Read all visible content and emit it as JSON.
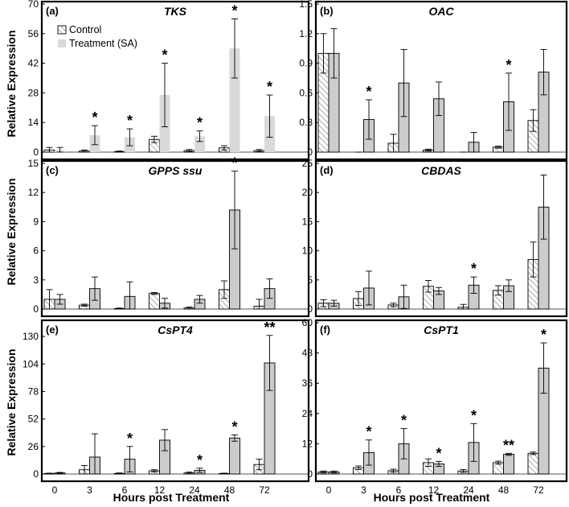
{
  "figure": {
    "ylabel": "Relative Expression",
    "xlabel": "Hours post Treatment",
    "legend": [
      "Control",
      "Treatment (SA)"
    ],
    "colors": {
      "control_hatch": "#b0b0b0",
      "treatment_fill": "#cccccc",
      "treatment_fill_a": "#d9d9d9"
    }
  },
  "chart_data": [
    {
      "type": "bar",
      "label": "(a)",
      "title": "TKS",
      "categories": [
        "0",
        "3",
        "6",
        "12",
        "24",
        "48",
        "72"
      ],
      "ylim": [
        0,
        70
      ],
      "yticks": [
        0,
        14,
        28,
        42,
        56,
        70
      ],
      "series": [
        {
          "name": "Control",
          "values": [
            1,
            0.5,
            0.2,
            6,
            0.7,
            2,
            0.7
          ],
          "errors": [
            1.2,
            0.5,
            0.3,
            1.5,
            0.5,
            1,
            0.5
          ]
        },
        {
          "name": "Treatment (SA)",
          "values": [
            1,
            8,
            7,
            27,
            7.5,
            49,
            17
          ],
          "errors": [
            1.2,
            4.5,
            4,
            15,
            2.5,
            14,
            10
          ]
        }
      ],
      "annotations": [
        "",
        "*",
        "*",
        "*",
        "*",
        "*",
        "*"
      ],
      "legend_position": "top-left"
    },
    {
      "type": "bar",
      "label": "(b)",
      "title": "OAC",
      "categories": [
        "0",
        "3",
        "6",
        "12",
        "24",
        "48",
        "72"
      ],
      "ylim": [
        0,
        1.5
      ],
      "yticks": [
        0,
        0.3,
        0.6,
        0.9,
        1.2,
        1.5
      ],
      "series": [
        {
          "name": "Control",
          "values": [
            1.0,
            0.0,
            0.09,
            0.02,
            0.0,
            0.05,
            0.32
          ],
          "errors": [
            0.2,
            0,
            0.09,
            0.01,
            0,
            0.01,
            0.11
          ]
        },
        {
          "name": "Treatment (SA)",
          "values": [
            1.0,
            0.33,
            0.7,
            0.54,
            0.1,
            0.51,
            0.81
          ],
          "errors": [
            0.25,
            0.2,
            0.34,
            0.17,
            0.1,
            0.29,
            0.23
          ]
        }
      ],
      "annotations": [
        "",
        "*",
        "",
        "",
        "",
        "*",
        ""
      ]
    },
    {
      "type": "bar",
      "label": "(c)",
      "title": "GPPS ssu",
      "categories": [
        "0",
        "3",
        "6",
        "12",
        "24",
        "48",
        "72"
      ],
      "ylim": [
        0,
        15
      ],
      "yticks": [
        0,
        3,
        6,
        9,
        12,
        15
      ],
      "series": [
        {
          "name": "Control",
          "values": [
            1.0,
            0.4,
            0.05,
            1.6,
            0.1,
            2.0,
            0.3
          ],
          "errors": [
            1.0,
            0.1,
            0.05,
            0.1,
            0.1,
            0.9,
            0.7
          ]
        },
        {
          "name": "Treatment (SA)",
          "values": [
            1.0,
            2.1,
            1.3,
            0.6,
            1.0,
            10.2,
            2.1
          ],
          "errors": [
            0.5,
            1.2,
            1.5,
            0.5,
            0.4,
            4.0,
            1.0
          ]
        }
      ],
      "annotations": [
        "",
        "",
        "",
        "",
        "",
        "*",
        ""
      ]
    },
    {
      "type": "bar",
      "label": "(d)",
      "title": "CBDAS",
      "categories": [
        "0",
        "3",
        "6",
        "12",
        "24",
        "48",
        "72"
      ],
      "ylim": [
        0,
        25
      ],
      "yticks": [
        0,
        5,
        10,
        15,
        20,
        25
      ],
      "series": [
        {
          "name": "Control",
          "values": [
            1.0,
            1.8,
            0.7,
            3.9,
            0.3,
            3.2,
            8.5
          ],
          "errors": [
            0.6,
            1.2,
            0.3,
            1.0,
            0.5,
            0.8,
            3.0
          ]
        },
        {
          "name": "Treatment (SA)",
          "values": [
            1.0,
            3.6,
            2.1,
            3.1,
            4.1,
            4.0,
            17.5
          ],
          "errors": [
            0.5,
            2.9,
            2.0,
            0.6,
            1.4,
            1.0,
            5.5
          ]
        }
      ],
      "annotations": [
        "",
        "",
        "",
        "",
        "*",
        "",
        ""
      ]
    },
    {
      "type": "bar",
      "label": "(e)",
      "title": "CsPT4",
      "categories": [
        "0",
        "3",
        "6",
        "12",
        "24",
        "48",
        "72"
      ],
      "ylim": [
        0,
        143
      ],
      "yticks": [
        0,
        26,
        52,
        78,
        104,
        130
      ],
      "series": [
        {
          "name": "Control",
          "values": [
            0.5,
            4,
            0.5,
            3,
            1,
            0.5,
            9
          ],
          "errors": [
            0.3,
            4,
            0.5,
            1,
            0.8,
            0.3,
            5
          ]
        },
        {
          "name": "Treatment (SA)",
          "values": [
            1,
            16,
            14,
            32,
            3.5,
            34,
            105
          ],
          "errors": [
            0.5,
            22,
            12,
            10,
            2,
            3,
            26
          ]
        }
      ],
      "annotations": [
        "",
        "",
        "*",
        "",
        "*",
        "*",
        "**"
      ]
    },
    {
      "type": "bar",
      "label": "(f)",
      "title": "CsPT1",
      "categories": [
        "0",
        "3",
        "6",
        "12",
        "24",
        "48",
        "72"
      ],
      "ylim": [
        0,
        60
      ],
      "yticks": [
        0,
        12,
        24,
        36,
        48,
        60
      ],
      "series": [
        {
          "name": "Control",
          "values": [
            0.8,
            2.5,
            1.3,
            4.5,
            1.2,
            4.5,
            8.2
          ],
          "errors": [
            0.4,
            0.7,
            0.6,
            1.5,
            0.6,
            0.6,
            0.5
          ]
        },
        {
          "name": "Treatment (SA)",
          "values": [
            0.8,
            8.5,
            12,
            4,
            12.5,
            7.8,
            42
          ],
          "errors": [
            0.4,
            5,
            6,
            1,
            7.5,
            0.4,
            10
          ]
        }
      ],
      "annotations": [
        "",
        "*",
        "*",
        "*",
        "*",
        "**",
        "*"
      ]
    }
  ]
}
